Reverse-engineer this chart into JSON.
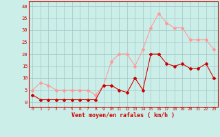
{
  "x": [
    0,
    1,
    2,
    3,
    4,
    5,
    6,
    7,
    8,
    9,
    10,
    11,
    12,
    13,
    14,
    15,
    16,
    17,
    18,
    19,
    20,
    21,
    22,
    23
  ],
  "wind_mean": [
    3,
    1,
    1,
    1,
    1,
    1,
    1,
    1,
    1,
    7,
    7,
    5,
    4,
    10,
    5,
    20,
    20,
    16,
    15,
    16,
    14,
    14,
    16,
    10
  ],
  "wind_gust": [
    5,
    8,
    7,
    5,
    5,
    5,
    5,
    5,
    3,
    7,
    17,
    20,
    20,
    15,
    22,
    31,
    37,
    33,
    31,
    31,
    26,
    26,
    26,
    22
  ],
  "bg_color": "#cceee8",
  "grid_color": "#aacccc",
  "mean_color": "#cc0000",
  "gust_color": "#ff9999",
  "xlabel": "Vent moyen/en rafales ( km/h )",
  "xlabel_color": "#cc0000",
  "tick_color": "#cc0000",
  "ylim": [
    -2,
    42
  ],
  "yticks": [
    0,
    5,
    10,
    15,
    20,
    25,
    30,
    35,
    40
  ],
  "xlim": [
    -0.5,
    23.5
  ]
}
